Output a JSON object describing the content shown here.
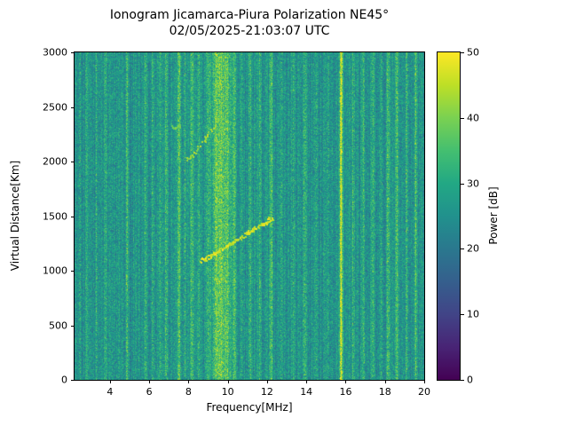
{
  "chart_data": {
    "type": "heatmap",
    "title": "Ionogram Jicamarca-Piura Polarization NE45°",
    "subtitle": "02/05/2025-21:03:07 UTC",
    "xlabel": "Frequency[MHz]",
    "ylabel": "Virtual Distance[Km]",
    "colorbar_label": "Power [dB]",
    "colormap": "viridis",
    "xlim": [
      2.2,
      20
    ],
    "ylim": [
      0,
      3000
    ],
    "clim": [
      0,
      50
    ],
    "x_ticks": [
      4,
      6,
      8,
      10,
      12,
      14,
      16,
      18,
      20
    ],
    "y_ticks": [
      0,
      500,
      1000,
      1500,
      2000,
      2500,
      3000
    ],
    "colorbar_ticks": [
      0,
      10,
      20,
      30,
      40,
      50
    ],
    "background_noise_db": {
      "mean": 27,
      "spread": 13
    },
    "rfi_lines": [
      {
        "mhz": 2.45,
        "boost_db": 5,
        "width_mhz": 0.05
      },
      {
        "mhz": 2.8,
        "boost_db": 4,
        "width_mhz": 0.04
      },
      {
        "mhz": 3.3,
        "boost_db": 5,
        "width_mhz": 0.05
      },
      {
        "mhz": 3.75,
        "boost_db": 6,
        "width_mhz": 0.05
      },
      {
        "mhz": 4.2,
        "boost_db": 4,
        "width_mhz": 0.04
      },
      {
        "mhz": 4.85,
        "boost_db": 7,
        "width_mhz": 0.05
      },
      {
        "mhz": 5.3,
        "boost_db": 4,
        "width_mhz": 0.04
      },
      {
        "mhz": 5.8,
        "boost_db": 5,
        "width_mhz": 0.05
      },
      {
        "mhz": 6.15,
        "boost_db": 6,
        "width_mhz": 0.05
      },
      {
        "mhz": 6.55,
        "boost_db": 5,
        "width_mhz": 0.05
      },
      {
        "mhz": 6.85,
        "boost_db": 7,
        "width_mhz": 0.05
      },
      {
        "mhz": 7.5,
        "boost_db": 11,
        "width_mhz": 0.06
      },
      {
        "mhz": 7.8,
        "boost_db": 6,
        "width_mhz": 0.05
      },
      {
        "mhz": 8.15,
        "boost_db": 9,
        "width_mhz": 0.06
      },
      {
        "mhz": 8.5,
        "boost_db": 7,
        "width_mhz": 0.05
      },
      {
        "mhz": 9.0,
        "boost_db": 8,
        "width_mhz": 0.08
      },
      {
        "mhz": 9.35,
        "boost_db": 12,
        "width_mhz": 0.1
      },
      {
        "mhz": 9.65,
        "boost_db": 13,
        "width_mhz": 0.12
      },
      {
        "mhz": 9.95,
        "boost_db": 12,
        "width_mhz": 0.1
      },
      {
        "mhz": 10.3,
        "boost_db": 9,
        "width_mhz": 0.07
      },
      {
        "mhz": 10.7,
        "boost_db": 6,
        "width_mhz": 0.05
      },
      {
        "mhz": 11.1,
        "boost_db": 7,
        "width_mhz": 0.05
      },
      {
        "mhz": 11.6,
        "boost_db": 6,
        "width_mhz": 0.05
      },
      {
        "mhz": 12.2,
        "boost_db": 8,
        "width_mhz": 0.06
      },
      {
        "mhz": 12.7,
        "boost_db": 5,
        "width_mhz": 0.05
      },
      {
        "mhz": 13.3,
        "boost_db": 5,
        "width_mhz": 0.05
      },
      {
        "mhz": 13.9,
        "boost_db": 7,
        "width_mhz": 0.05
      },
      {
        "mhz": 14.5,
        "boost_db": 5,
        "width_mhz": 0.05
      },
      {
        "mhz": 15.1,
        "boost_db": 5,
        "width_mhz": 0.05
      },
      {
        "mhz": 15.75,
        "boost_db": 21,
        "width_mhz": 0.05
      },
      {
        "mhz": 16.35,
        "boost_db": 6,
        "width_mhz": 0.05
      },
      {
        "mhz": 16.9,
        "boost_db": 5,
        "width_mhz": 0.05
      },
      {
        "mhz": 17.35,
        "boost_db": 7,
        "width_mhz": 0.05
      },
      {
        "mhz": 17.8,
        "boost_db": 5,
        "width_mhz": 0.05
      },
      {
        "mhz": 18.15,
        "boost_db": 9,
        "width_mhz": 0.06
      },
      {
        "mhz": 18.6,
        "boost_db": 10,
        "width_mhz": 0.06
      },
      {
        "mhz": 19.1,
        "boost_db": 7,
        "width_mhz": 0.05
      },
      {
        "mhz": 19.55,
        "boost_db": 9,
        "width_mhz": 0.05
      }
    ],
    "echo_traces": [
      {
        "name": "f-layer-trace",
        "power_db": 47,
        "dash_density": 0.78,
        "points_mhz_km": [
          [
            8.6,
            1090
          ],
          [
            9.2,
            1150
          ],
          [
            10.0,
            1240
          ],
          [
            10.8,
            1330
          ],
          [
            11.6,
            1420
          ],
          [
            12.25,
            1490
          ]
        ]
      },
      {
        "name": "second-hop-trace",
        "power_db": 43,
        "dash_density": 0.45,
        "points_mhz_km": [
          [
            7.9,
            2010
          ],
          [
            8.5,
            2140
          ],
          [
            9.0,
            2260
          ],
          [
            9.35,
            2350
          ]
        ]
      },
      {
        "name": "short-echo-segment",
        "power_db": 41,
        "dash_density": 0.5,
        "points_mhz_km": [
          [
            7.15,
            2320
          ],
          [
            7.55,
            2335
          ]
        ]
      }
    ]
  }
}
